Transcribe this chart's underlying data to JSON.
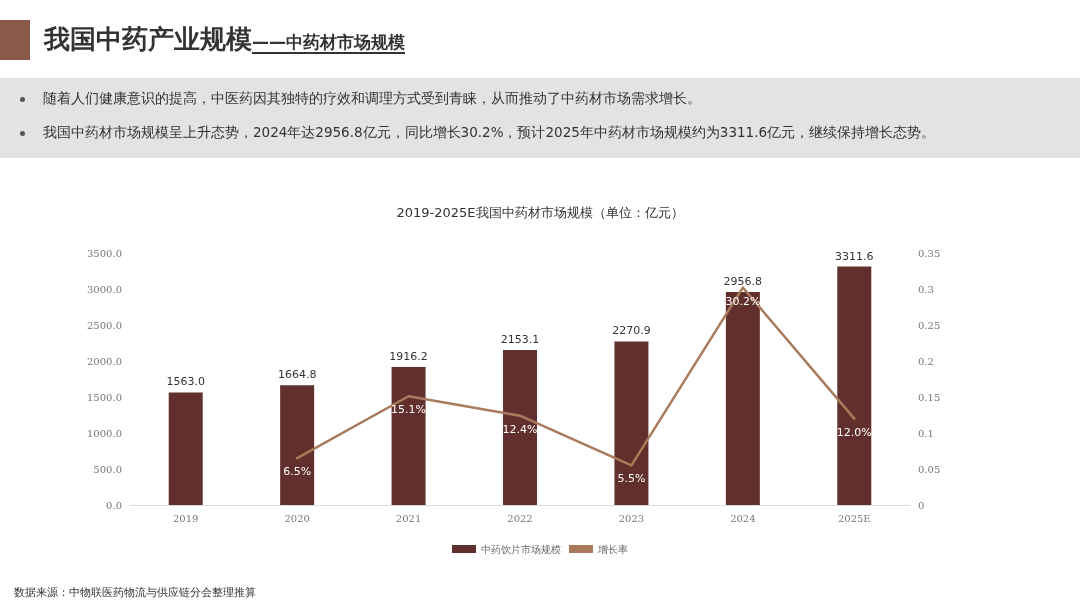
{
  "chart_data": {
    "type": "bar",
    "title": "我国中药产业规模——中药材市场规模",
    "subtitle": "2019-2025E我国中药材市场规模（单位：亿元）",
    "annotations": [
      "随着人们健康意识的提高，中医药因其独特的疗效和调理方式受到青睐，从而推动了中药材市场需求增长。",
      "我国中药材市场规模呈上升态势，2024年达2956.8亿元，同比增长30.2%，预计2025年中药材市场规模约为3311.6亿元，继续保持增长态势。",
      "数据来源：中物联医药物流与供应链分会整理推算"
    ],
    "categories": [
      "2019",
      "2020",
      "2021",
      "2022",
      "2023",
      "2024",
      "2025E"
    ],
    "series": [
      {
        "name": "中药饮片市场规模",
        "color": "#62302c",
        "values": [
          1563.0,
          1664.8,
          1916.2,
          2153.1,
          2270.9,
          2956.8,
          3311.6
        ],
        "value_labels": [
          "1563.0",
          "1664.8",
          "1916.2",
          "2153.1",
          "2270.9",
          "2956.8",
          "3311.6"
        ]
      },
      {
        "name": "增长率",
        "type": "line",
        "axis": "y2",
        "color": "#a97a5c",
        "values": [
          null,
          0.065,
          0.151,
          0.124,
          0.055,
          0.302,
          0.12
        ],
        "value_labels": [
          null,
          "6.5%",
          "15.1%",
          "12.4%",
          "5.5%",
          "30.2%",
          "12.0%"
        ]
      }
    ],
    "ylim": [
      0,
      3500
    ],
    "yticks": [
      {
        "value": 0,
        "label": "0.0"
      },
      {
        "value": 500,
        "label": "500.0"
      },
      {
        "value": 1000,
        "label": "1000.0"
      },
      {
        "value": 1500,
        "label": "1500.0"
      },
      {
        "value": 2000,
        "label": "2000.0"
      },
      {
        "value": 2500,
        "label": "2500.0"
      },
      {
        "value": 3000,
        "label": "3000.0"
      },
      {
        "value": 3500,
        "label": "3500.0"
      }
    ],
    "y2lim": [
      0,
      0.35
    ],
    "y2ticks": [
      0,
      0.05,
      0.1,
      0.15,
      0.2,
      0.25,
      0.3,
      0.35
    ],
    "grid": false,
    "legend": "bottom",
    "marker": "none",
    "line_style": "solid"
  }
}
